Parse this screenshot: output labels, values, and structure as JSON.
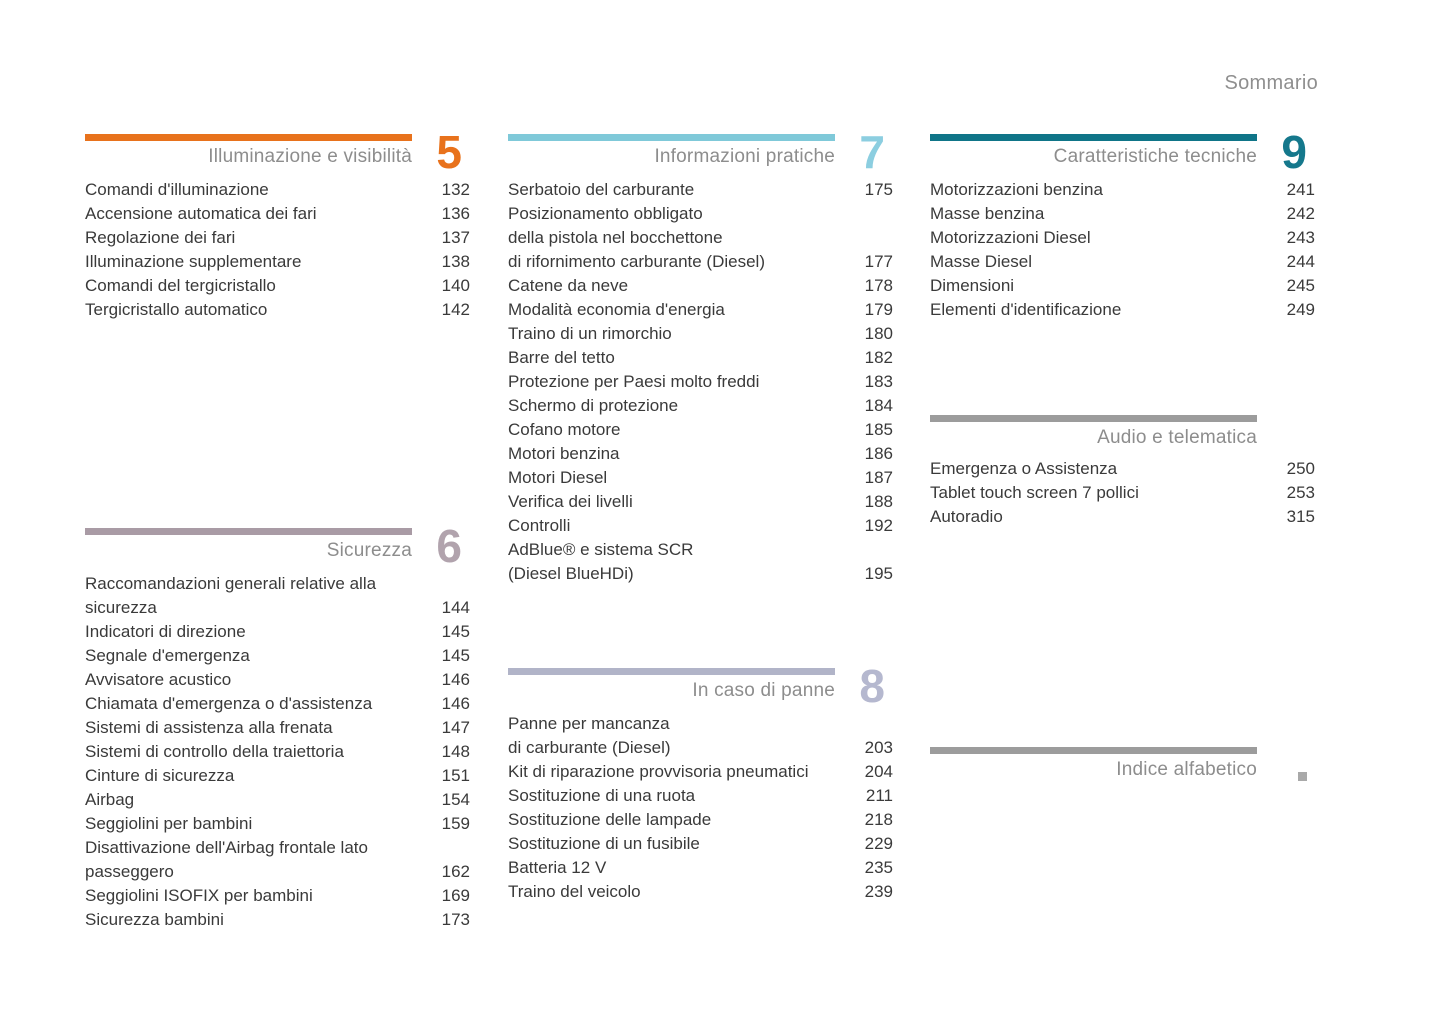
{
  "page": {
    "header": "Sommario"
  },
  "colors": {
    "section5_orange": "#e8721c",
    "section6_mauve": "#a99ba5",
    "section7_lightblue": "#7fc9d9",
    "section8_bluegray": "#b1b4c8",
    "section9_teal": "#0f7588",
    "gray_bar": "#9c9c9c",
    "title_gray": "#8d8d8d",
    "body_text": "#3a3a3a"
  },
  "columns": [
    {
      "sections": [
        {
          "number": "5",
          "title": "Illuminazione e visibilità",
          "items": [
            {
              "label": "Comandi d'illuminazione",
              "page": "132"
            },
            {
              "label": "Accensione automatica dei fari",
              "page": "136"
            },
            {
              "label": "Regolazione dei fari",
              "page": "137"
            },
            {
              "label": "Illuminazione supplementare",
              "page": "138"
            },
            {
              "label": "Comandi del tergicristallo",
              "page": "140"
            },
            {
              "label": "Tergicristallo automatico",
              "page": "142"
            }
          ]
        },
        {
          "number": "6",
          "title": "Sicurezza",
          "items": [
            {
              "label": "Raccomandazioni generali relative alla\nsicurezza",
              "page": "144"
            },
            {
              "label": "Indicatori di direzione",
              "page": "145"
            },
            {
              "label": "Segnale d'emergenza",
              "page": "145"
            },
            {
              "label": "Avvisatore acustico",
              "page": "146"
            },
            {
              "label": "Chiamata d'emergenza o d'assistenza",
              "page": "146"
            },
            {
              "label": "Sistemi di assistenza alla frenata",
              "page": "147"
            },
            {
              "label": "Sistemi di controllo della traiettoria",
              "page": "148"
            },
            {
              "label": "Cinture di sicurezza",
              "page": "151"
            },
            {
              "label": "Airbag",
              "page": "154"
            },
            {
              "label": "Seggiolini per bambini",
              "page": "159"
            },
            {
              "label": "Disattivazione dell'Airbag frontale lato\npasseggero",
              "page": "162"
            },
            {
              "label": "Seggiolini ISOFIX per bambini",
              "page": "169"
            },
            {
              "label": "Sicurezza bambini",
              "page": "173"
            }
          ]
        }
      ]
    },
    {
      "sections": [
        {
          "number": "7",
          "title": "Informazioni pratiche",
          "items": [
            {
              "label": "Serbatoio del carburante",
              "page": "175"
            },
            {
              "label": "Posizionamento obbligato\ndella pistola nel bocchettone\ndi rifornimento carburante (Diesel)",
              "page": "177"
            },
            {
              "label": "Catene da neve",
              "page": "178"
            },
            {
              "label": "Modalità economia d'energia",
              "page": "179"
            },
            {
              "label": "Traino di un rimorchio",
              "page": "180"
            },
            {
              "label": "Barre del tetto",
              "page": "182"
            },
            {
              "label": "Protezione per Paesi molto freddi",
              "page": "183"
            },
            {
              "label": "Schermo di protezione",
              "page": "184"
            },
            {
              "label": "Cofano motore",
              "page": "185"
            },
            {
              "label": "Motori benzina",
              "page": "186"
            },
            {
              "label": "Motori Diesel",
              "page": "187"
            },
            {
              "label": "Verifica dei livelli",
              "page": "188"
            },
            {
              "label": "Controlli",
              "page": "192"
            },
            {
              "label": "AdBlue® e sistema SCR\n(Diesel BlueHDi)",
              "page": "195"
            }
          ]
        },
        {
          "number": "8",
          "title": "In caso di panne",
          "items": [
            {
              "label": "Panne per mancanza\ndi carburante (Diesel)",
              "page": "203"
            },
            {
              "label": "Kit di riparazione provvisoria pneumatici",
              "page": "204"
            },
            {
              "label": "Sostituzione di una ruota",
              "page": "211"
            },
            {
              "label": "Sostituzione delle lampade",
              "page": "218"
            },
            {
              "label": "Sostituzione di un fusibile",
              "page": "229"
            },
            {
              "label": "Batteria 12 V",
              "page": "235"
            },
            {
              "label": "Traino del veicolo",
              "page": "239"
            }
          ]
        }
      ]
    },
    {
      "sections": [
        {
          "number": "9",
          "title": "Caratteristiche tecniche",
          "items": [
            {
              "label": "Motorizzazioni benzina",
              "page": "241"
            },
            {
              "label": "Masse benzina",
              "page": "242"
            },
            {
              "label": "Motorizzazioni Diesel",
              "page": "243"
            },
            {
              "label": "Masse Diesel",
              "page": "244"
            },
            {
              "label": "Dimensioni",
              "page": "245"
            },
            {
              "label": "Elementi d'identificazione",
              "page": "249"
            }
          ]
        },
        {
          "number": "",
          "title": "Audio e telematica",
          "items": [
            {
              "label": "Emergenza o Assistenza",
              "page": "250"
            },
            {
              "label": "Tablet touch screen 7 pollici",
              "page": "253"
            },
            {
              "label": "Autoradio",
              "page": "315"
            }
          ]
        },
        {
          "number": "",
          "title": "Indice alfabetico",
          "marker": "square",
          "items": []
        }
      ]
    }
  ]
}
